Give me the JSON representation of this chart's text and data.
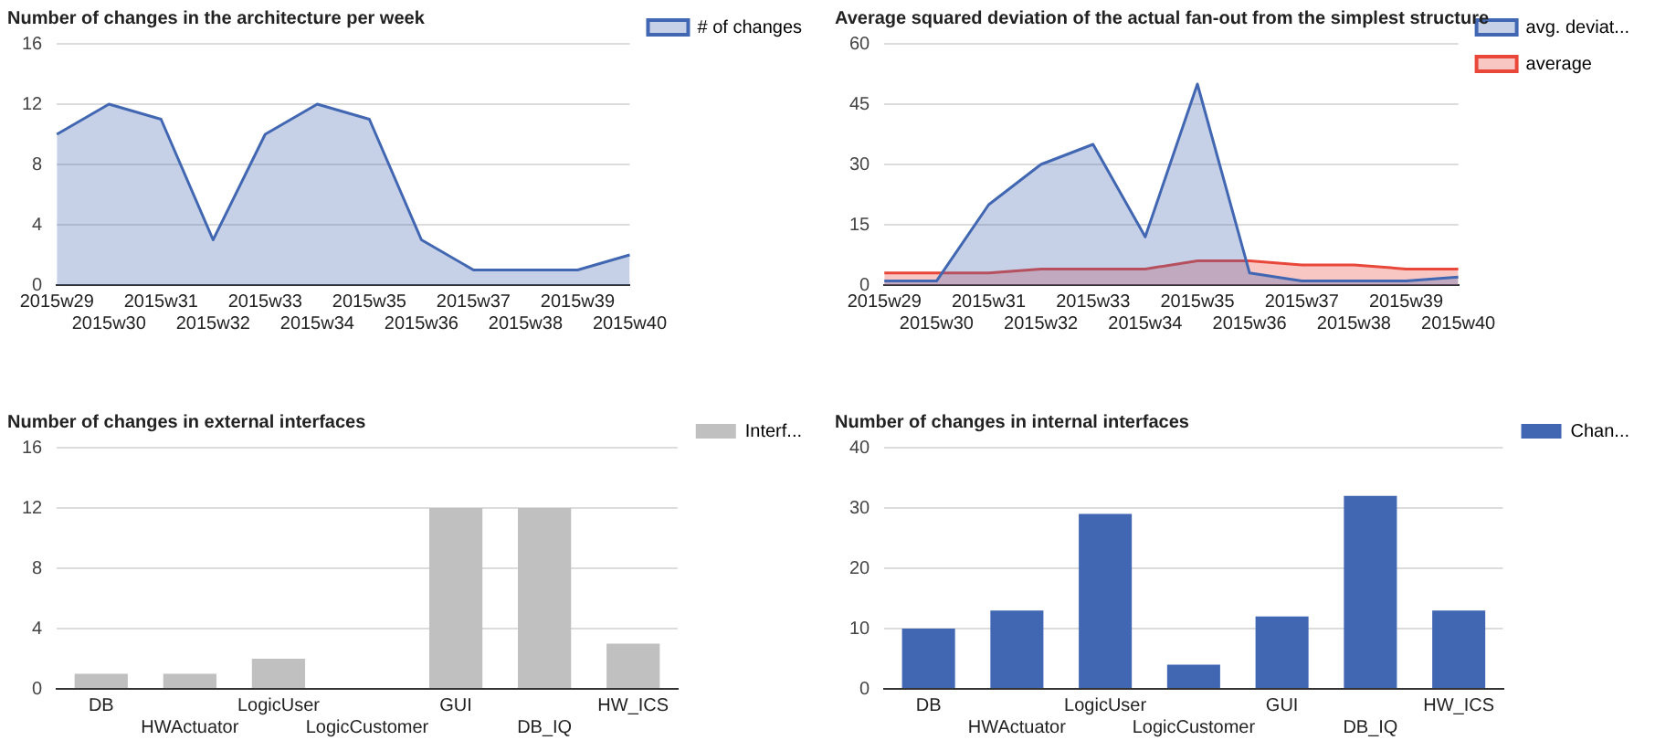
{
  "chart_data": [
    {
      "type": "area",
      "title": "Number of changes in the architecture per week",
      "categories": [
        "2015w29",
        "2015w30",
        "2015w31",
        "2015w32",
        "2015w33",
        "2015w34",
        "2015w35",
        "2015w36",
        "2015w37",
        "2015w38",
        "2015w39",
        "2015w40"
      ],
      "series": [
        {
          "name": "# of changes",
          "color": "#4267b2",
          "values": [
            10,
            12,
            11,
            3,
            10,
            12,
            11,
            3,
            1,
            1,
            1,
            2
          ]
        }
      ],
      "ylim": [
        0,
        16
      ],
      "yticks": [
        0,
        4,
        8,
        12,
        16
      ],
      "grid": "y",
      "legend": "top right"
    },
    {
      "type": "area",
      "title": "Average squared deviation of the actual fan-out from the simplest structure",
      "categories": [
        "2015w29",
        "2015w30",
        "2015w31",
        "2015w32",
        "2015w33",
        "2015w34",
        "2015w35",
        "2015w36",
        "2015w37",
        "2015w38",
        "2015w39",
        "2015w40"
      ],
      "series": [
        {
          "name": "avg. deviat...",
          "color": "#4267b2",
          "values": [
            1,
            1,
            20,
            30,
            35,
            12,
            50,
            3,
            1,
            1,
            1,
            2
          ]
        },
        {
          "name": "average",
          "color": "#e8473a",
          "values": [
            3,
            3,
            3,
            4,
            4,
            4,
            6,
            6,
            5,
            5,
            4,
            4
          ]
        }
      ],
      "ylim": [
        0,
        60
      ],
      "yticks": [
        0,
        15,
        30,
        45,
        60
      ],
      "grid": "y",
      "legend": "top right"
    },
    {
      "type": "bar",
      "title": "Number of changes in external interfaces",
      "categories": [
        "DB",
        "HWActuator",
        "LogicUser",
        "LogicCustomer",
        "GUI",
        "DB_IQ",
        "HW_ICS"
      ],
      "series": [
        {
          "name": "Interf...",
          "color": "#c0c0c0",
          "values": [
            1,
            1,
            2,
            0,
            12,
            12,
            3
          ]
        }
      ],
      "ylim": [
        0,
        16
      ],
      "yticks": [
        0,
        4,
        8,
        12,
        16
      ],
      "grid": "y",
      "legend": "top right"
    },
    {
      "type": "bar",
      "title": "Number of changes in internal interfaces",
      "categories": [
        "DB",
        "HWActuator",
        "LogicUser",
        "LogicCustomer",
        "GUI",
        "DB_IQ",
        "HW_ICS"
      ],
      "series": [
        {
          "name": "Chan...",
          "color": "#4267b2",
          "values": [
            10,
            13,
            29,
            4,
            12,
            32,
            13
          ]
        }
      ],
      "ylim": [
        0,
        40
      ],
      "yticks": [
        0,
        10,
        20,
        30,
        40
      ],
      "grid": "y",
      "legend": "top right"
    }
  ]
}
